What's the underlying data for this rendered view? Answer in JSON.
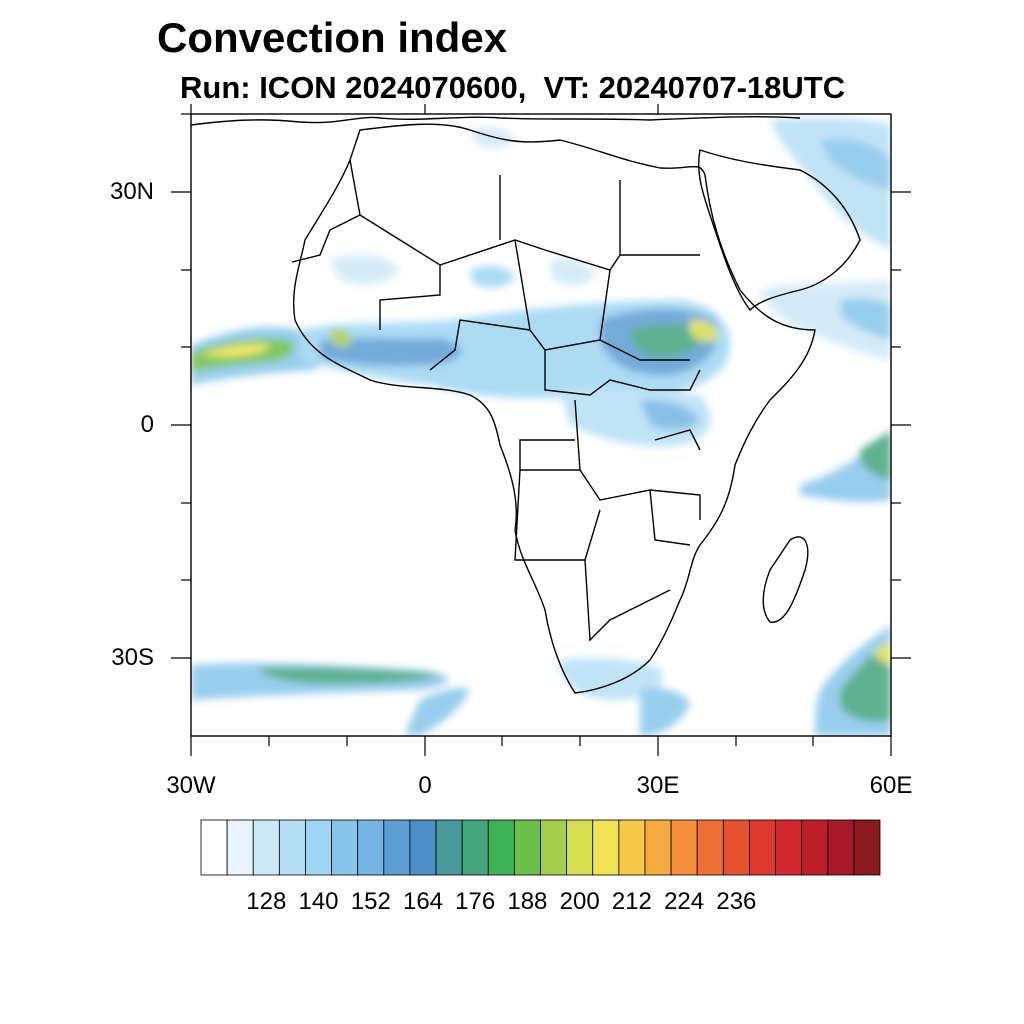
{
  "title": "Convection index",
  "subtitle": "Run: ICON 2024070600,  VT: 20240707-18UTC",
  "map": {
    "lon_range": [
      -30,
      60
    ],
    "lat_range": [
      -40,
      40
    ],
    "lat_ticks": [
      {
        "value": 30,
        "label": "30N"
      },
      {
        "value": 0,
        "label": "0"
      },
      {
        "value": -30,
        "label": "30S"
      }
    ],
    "lon_ticks": [
      {
        "value": -30,
        "label": "30W"
      },
      {
        "value": 0,
        "label": "0"
      },
      {
        "value": 30,
        "label": "30E"
      },
      {
        "value": 60,
        "label": "60E"
      }
    ]
  },
  "colorbar": {
    "colors": [
      "#ffffff",
      "#e8f4fb",
      "#cde8f6",
      "#b6dff5",
      "#9ed6f3",
      "#87c6ea",
      "#76b5e3",
      "#5c9dd3",
      "#4e8ec8",
      "#4a999b",
      "#43a47e",
      "#3fb157",
      "#6cbf4a",
      "#a6ce4c",
      "#d6df50",
      "#f1e454",
      "#f6c94a",
      "#f5ab3f",
      "#f28f38",
      "#ee6f33",
      "#e6512e",
      "#de392c",
      "#d2272c",
      "#bc1e2a",
      "#a8182b",
      "#8b1a1c"
    ],
    "labels": [
      "128",
      "140",
      "152",
      "164",
      "176",
      "188",
      "200",
      "212",
      "224",
      "236"
    ]
  }
}
